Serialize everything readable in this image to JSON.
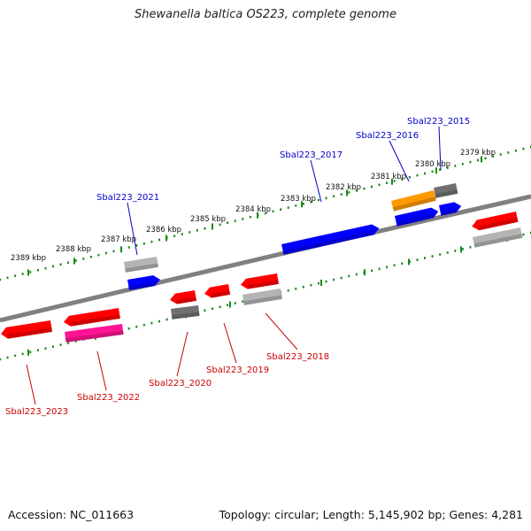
{
  "title": "Shewanella baltica OS223, complete genome",
  "footer": {
    "accession": "Accession: NC_011663",
    "summary": "Topology: circular; Length: 5,145,902 bp; Genes: 4,281"
  },
  "colors": {
    "backbone": "#808080",
    "ticks": "#1a8a1a",
    "label_top": "#0000cc",
    "label_bottom": "#cc0000",
    "red": "#ff0000",
    "blue": "#0000ff",
    "orange": "#ff9900",
    "grey": "#707070",
    "light_grey": "#b4b4b4",
    "magenta": "#ff1493"
  },
  "tick_labels": [
    "2379 kbp",
    "2380 kbp",
    "2381 kbp",
    "2382 kbp",
    "2383 kbp",
    "2384 kbp",
    "2385 kbp",
    "2386 kbp",
    "2387 kbp",
    "2388 kbp",
    "2389 kbp"
  ],
  "gene_labels": {
    "top": [
      "Sbal223_2015",
      "Sbal223_2016",
      "Sbal223_2017",
      "Sbal223_2021"
    ],
    "bottom": [
      "Sbal223_2018",
      "Sbal223_2019",
      "Sbal223_2020",
      "Sbal223_2022",
      "Sbal223_2023"
    ]
  }
}
